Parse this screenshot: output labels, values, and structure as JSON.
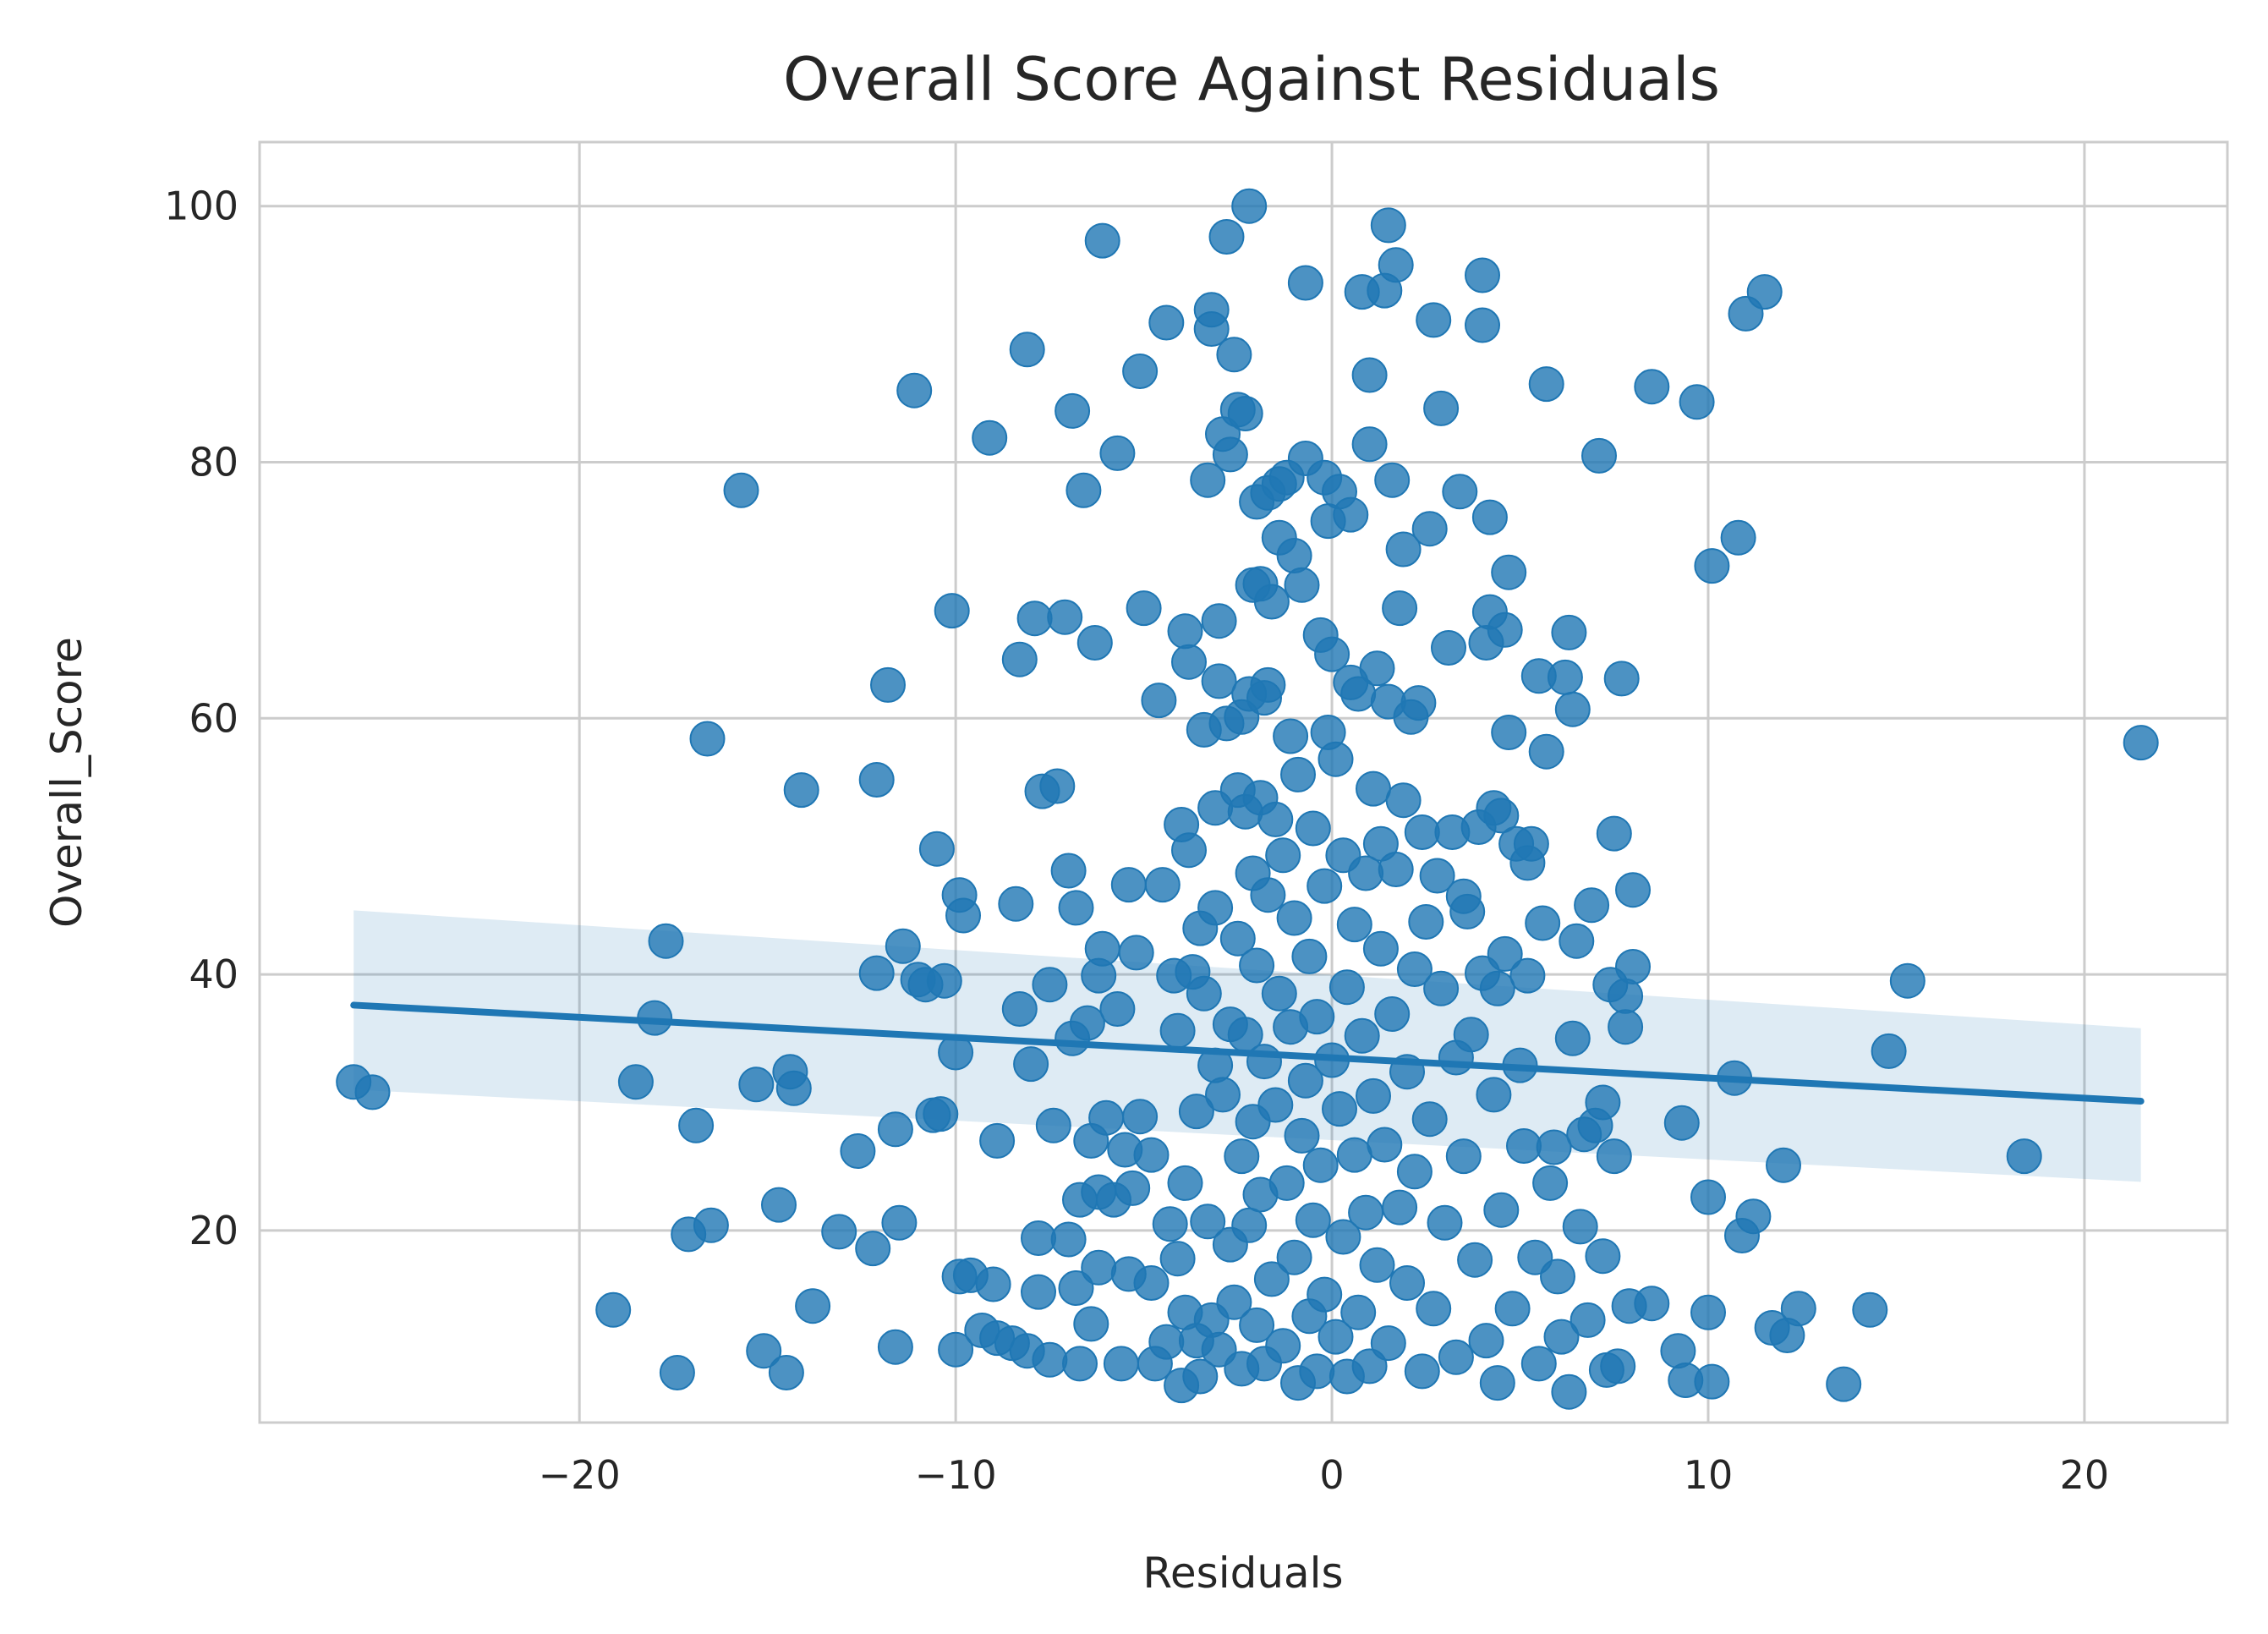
{
  "chart_data": {
    "type": "scatter",
    "title": "Overall Score Against Residuals",
    "xlabel": "Residuals",
    "ylabel": "Overall_Score",
    "xlim": [
      -28.5,
      23.8
    ],
    "ylim": [
      5,
      105
    ],
    "xticks": [
      -20,
      -10,
      0,
      10,
      20
    ],
    "xtick_labels": [
      "−20",
      "−10",
      "0",
      "10",
      "20"
    ],
    "yticks": [
      20,
      40,
      60,
      80,
      100
    ],
    "ytick_labels": [
      "20",
      "40",
      "60",
      "80",
      "100"
    ],
    "grid": true,
    "colors": {
      "point": "#1f77b4",
      "line": "#1f77b4",
      "band": "#1f77b4",
      "grid": "#cccccc"
    },
    "regression": {
      "x": [
        -26.0,
        21.5
      ],
      "y": [
        37.6,
        30.1
      ],
      "ci_upper": [
        45.0,
        35.8
      ],
      "ci_lower": [
        31.0,
        23.8
      ]
    },
    "points": [
      [
        -26.0,
        31.6
      ],
      [
        -25.5,
        30.8
      ],
      [
        -19.1,
        13.8
      ],
      [
        -18.5,
        31.6
      ],
      [
        -18.0,
        36.6
      ],
      [
        -17.7,
        42.6
      ],
      [
        -17.4,
        8.9
      ],
      [
        -16.9,
        28.2
      ],
      [
        -16.6,
        58.4
      ],
      [
        -16.5,
        20.4
      ],
      [
        -17.1,
        19.7
      ],
      [
        -15.7,
        77.8
      ],
      [
        -15.3,
        31.4
      ],
      [
        -15.1,
        10.6
      ],
      [
        -14.7,
        22.0
      ],
      [
        -14.5,
        8.9
      ],
      [
        -14.4,
        32.4
      ],
      [
        -14.3,
        31.1
      ],
      [
        -14.1,
        54.4
      ],
      [
        -13.8,
        14.1
      ],
      [
        -13.1,
        19.9
      ],
      [
        -12.6,
        26.2
      ],
      [
        -12.2,
        18.6
      ],
      [
        -12.1,
        40.1
      ],
      [
        -12.1,
        55.2
      ],
      [
        -11.8,
        62.6
      ],
      [
        -11.6,
        27.9
      ],
      [
        -11.6,
        10.9
      ],
      [
        -11.5,
        20.6
      ],
      [
        -11.4,
        42.2
      ],
      [
        -11.1,
        85.6
      ],
      [
        -11.0,
        39.6
      ],
      [
        -10.8,
        39.2
      ],
      [
        -10.6,
        29.0
      ],
      [
        -10.5,
        49.8
      ],
      [
        -10.4,
        29.1
      ],
      [
        -10.3,
        39.5
      ],
      [
        -10.1,
        68.4
      ],
      [
        -10.0,
        33.9
      ],
      [
        -10.0,
        10.7
      ],
      [
        -9.9,
        46.2
      ],
      [
        -9.9,
        16.4
      ],
      [
        -9.8,
        44.6
      ],
      [
        -9.6,
        16.5
      ],
      [
        -9.3,
        12.2
      ],
      [
        -9.1,
        81.9
      ],
      [
        -9.0,
        15.8
      ],
      [
        -8.9,
        11.6
      ],
      [
        -8.9,
        27.0
      ],
      [
        -8.5,
        11.2
      ],
      [
        -8.4,
        45.5
      ],
      [
        -8.3,
        37.3
      ],
      [
        -8.3,
        64.6
      ],
      [
        -8.1,
        88.8
      ],
      [
        -8.1,
        10.6
      ],
      [
        -8.0,
        33.0
      ],
      [
        -7.9,
        67.8
      ],
      [
        -7.8,
        19.4
      ],
      [
        -7.8,
        15.2
      ],
      [
        -7.7,
        54.3
      ],
      [
        -7.5,
        39.2
      ],
      [
        -7.5,
        9.9
      ],
      [
        -7.4,
        28.2
      ],
      [
        -7.3,
        54.7
      ],
      [
        -7.1,
        67.9
      ],
      [
        -7.0,
        19.3
      ],
      [
        -7.0,
        48.1
      ],
      [
        -6.9,
        35.0
      ],
      [
        -6.9,
        84.0
      ],
      [
        -6.8,
        45.2
      ],
      [
        -6.8,
        15.5
      ],
      [
        -6.7,
        9.6
      ],
      [
        -6.7,
        22.4
      ],
      [
        -6.6,
        77.8
      ],
      [
        -6.5,
        36.2
      ],
      [
        -6.4,
        12.7
      ],
      [
        -6.4,
        27.0
      ],
      [
        -6.3,
        65.9
      ],
      [
        -6.2,
        23.0
      ],
      [
        -6.2,
        39.9
      ],
      [
        -6.2,
        17.1
      ],
      [
        -6.1,
        42.0
      ],
      [
        -6.1,
        97.3
      ],
      [
        -6.0,
        28.8
      ],
      [
        -5.8,
        22.4
      ],
      [
        -5.7,
        80.7
      ],
      [
        -5.7,
        37.3
      ],
      [
        -5.6,
        9.6
      ],
      [
        -5.5,
        26.3
      ],
      [
        -5.4,
        16.6
      ],
      [
        -5.4,
        47.0
      ],
      [
        -5.3,
        23.3
      ],
      [
        -5.2,
        41.7
      ],
      [
        -5.1,
        87.1
      ],
      [
        -5.1,
        28.9
      ],
      [
        -5.0,
        68.6
      ],
      [
        -4.8,
        25.9
      ],
      [
        -4.8,
        15.9
      ],
      [
        -4.7,
        9.6
      ],
      [
        -4.6,
        61.4
      ],
      [
        -4.5,
        47.0
      ],
      [
        -4.4,
        90.9
      ],
      [
        -4.4,
        11.3
      ],
      [
        -4.3,
        20.5
      ],
      [
        -4.2,
        39.9
      ],
      [
        -4.1,
        35.6
      ],
      [
        -4.1,
        17.8
      ],
      [
        -4.0,
        51.7
      ],
      [
        -4.0,
        7.9
      ],
      [
        -3.9,
        13.6
      ],
      [
        -3.9,
        23.7
      ],
      [
        -3.9,
        66.8
      ],
      [
        -3.8,
        49.7
      ],
      [
        -3.8,
        64.4
      ],
      [
        -3.7,
        40.2
      ],
      [
        -3.6,
        29.3
      ],
      [
        -3.6,
        11.4
      ],
      [
        -3.5,
        43.6
      ],
      [
        -3.5,
        8.6
      ],
      [
        -3.4,
        38.5
      ],
      [
        -3.4,
        59.1
      ],
      [
        -3.3,
        78.6
      ],
      [
        -3.3,
        20.7
      ],
      [
        -3.2,
        91.9
      ],
      [
        -3.2,
        13.0
      ],
      [
        -3.2,
        90.4
      ],
      [
        -3.1,
        53.0
      ],
      [
        -3.1,
        32.9
      ],
      [
        -3.1,
        45.2
      ],
      [
        -3.0,
        67.6
      ],
      [
        -3.0,
        62.9
      ],
      [
        -3.0,
        10.7
      ],
      [
        -2.9,
        82.2
      ],
      [
        -2.9,
        30.6
      ],
      [
        -2.8,
        59.6
      ],
      [
        -2.8,
        97.6
      ],
      [
        -2.7,
        80.6
      ],
      [
        -2.7,
        18.9
      ],
      [
        -2.7,
        36.1
      ],
      [
        -2.6,
        88.4
      ],
      [
        -2.6,
        14.4
      ],
      [
        -2.5,
        54.4
      ],
      [
        -2.5,
        84.1
      ],
      [
        -2.5,
        42.8
      ],
      [
        -2.4,
        25.8
      ],
      [
        -2.4,
        60.1
      ],
      [
        -2.4,
        9.2
      ],
      [
        -2.3,
        83.8
      ],
      [
        -2.3,
        52.7
      ],
      [
        -2.3,
        35.3
      ],
      [
        -2.2,
        100.0
      ],
      [
        -2.2,
        61.9
      ],
      [
        -2.2,
        20.4
      ],
      [
        -2.1,
        70.4
      ],
      [
        -2.1,
        47.9
      ],
      [
        -2.1,
        28.5
      ],
      [
        -2.0,
        76.9
      ],
      [
        -2.0,
        12.6
      ],
      [
        -2.0,
        40.7
      ],
      [
        -1.9,
        53.8
      ],
      [
        -1.9,
        70.5
      ],
      [
        -1.9,
        22.8
      ],
      [
        -1.8,
        61.6
      ],
      [
        -1.8,
        33.2
      ],
      [
        -1.8,
        9.6
      ],
      [
        -1.7,
        62.6
      ],
      [
        -1.7,
        77.6
      ],
      [
        -1.7,
        46.2
      ],
      [
        -1.6,
        69.1
      ],
      [
        -1.6,
        16.2
      ],
      [
        -1.5,
        52.1
      ],
      [
        -1.5,
        29.8
      ],
      [
        -1.4,
        78.3
      ],
      [
        -1.4,
        74.1
      ],
      [
        -1.4,
        38.5
      ],
      [
        -1.3,
        11.0
      ],
      [
        -1.3,
        49.3
      ],
      [
        -1.2,
        78.8
      ],
      [
        -1.2,
        23.7
      ],
      [
        -1.1,
        58.6
      ],
      [
        -1.1,
        35.9
      ],
      [
        -1.0,
        72.7
      ],
      [
        -1.0,
        17.9
      ],
      [
        -1.0,
        44.4
      ],
      [
        -0.9,
        55.6
      ],
      [
        -0.9,
        8.1
      ],
      [
        -0.8,
        70.4
      ],
      [
        -0.8,
        27.4
      ],
      [
        -0.7,
        80.3
      ],
      [
        -0.7,
        31.7
      ],
      [
        -0.7,
        94.0
      ],
      [
        -0.6,
        13.3
      ],
      [
        -0.6,
        41.4
      ],
      [
        -0.5,
        51.4
      ],
      [
        -0.5,
        20.8
      ],
      [
        -0.4,
        36.7
      ],
      [
        -0.4,
        9.0
      ],
      [
        -0.3,
        66.5
      ],
      [
        -0.3,
        25.1
      ],
      [
        -0.2,
        78.8
      ],
      [
        -0.2,
        46.9
      ],
      [
        -0.2,
        15.0
      ],
      [
        -0.1,
        75.4
      ],
      [
        -0.1,
        58.9
      ],
      [
        0.0,
        33.3
      ],
      [
        0.0,
        65.0
      ],
      [
        0.1,
        11.7
      ],
      [
        0.1,
        56.8
      ],
      [
        0.2,
        29.5
      ],
      [
        0.2,
        77.7
      ],
      [
        0.3,
        49.3
      ],
      [
        0.3,
        19.5
      ],
      [
        0.4,
        39.0
      ],
      [
        0.4,
        8.6
      ],
      [
        0.5,
        62.8
      ],
      [
        0.5,
        75.9
      ],
      [
        0.6,
        43.9
      ],
      [
        0.6,
        25.9
      ],
      [
        0.7,
        61.9
      ],
      [
        0.7,
        13.6
      ],
      [
        0.8,
        93.3
      ],
      [
        0.8,
        35.2
      ],
      [
        0.9,
        47.9
      ],
      [
        0.9,
        21.4
      ],
      [
        1.0,
        86.8
      ],
      [
        1.0,
        81.4
      ],
      [
        1.0,
        9.4
      ],
      [
        1.1,
        54.5
      ],
      [
        1.1,
        30.5
      ],
      [
        1.2,
        63.9
      ],
      [
        1.2,
        17.3
      ],
      [
        1.3,
        42.0
      ],
      [
        1.3,
        50.2
      ],
      [
        1.4,
        93.4
      ],
      [
        1.4,
        26.7
      ],
      [
        1.5,
        98.5
      ],
      [
        1.5,
        61.3
      ],
      [
        1.5,
        11.2
      ],
      [
        1.6,
        78.6
      ],
      [
        1.6,
        36.9
      ],
      [
        1.7,
        95.4
      ],
      [
        1.7,
        48.2
      ],
      [
        1.8,
        68.6
      ],
      [
        1.8,
        21.8
      ],
      [
        1.9,
        73.2
      ],
      [
        1.9,
        53.6
      ],
      [
        2.0,
        15.9
      ],
      [
        2.0,
        32.4
      ],
      [
        2.1,
        60.1
      ],
      [
        2.2,
        40.4
      ],
      [
        2.2,
        24.6
      ],
      [
        2.3,
        61.2
      ],
      [
        2.4,
        9.0
      ],
      [
        2.4,
        51.1
      ],
      [
        2.5,
        44.1
      ],
      [
        2.6,
        74.8
      ],
      [
        2.6,
        28.7
      ],
      [
        2.7,
        91.1
      ],
      [
        2.7,
        13.9
      ],
      [
        2.8,
        47.7
      ],
      [
        2.9,
        84.2
      ],
      [
        2.9,
        38.9
      ],
      [
        3.0,
        20.6
      ],
      [
        3.1,
        65.5
      ],
      [
        3.2,
        51.1
      ],
      [
        3.3,
        33.5
      ],
      [
        3.3,
        10.1
      ],
      [
        3.4,
        77.7
      ],
      [
        3.5,
        46.1
      ],
      [
        3.5,
        25.8
      ],
      [
        3.6,
        44.9
      ],
      [
        3.7,
        35.3
      ],
      [
        3.8,
        17.7
      ],
      [
        3.9,
        51.5
      ],
      [
        4.0,
        94.6
      ],
      [
        4.0,
        90.7
      ],
      [
        4.0,
        40.1
      ],
      [
        4.1,
        11.4
      ],
      [
        4.1,
        65.9
      ],
      [
        4.2,
        68.3
      ],
      [
        4.2,
        75.7
      ],
      [
        4.3,
        53.0
      ],
      [
        4.3,
        30.6
      ],
      [
        4.4,
        8.1
      ],
      [
        4.4,
        38.9
      ],
      [
        4.5,
        52.4
      ],
      [
        4.5,
        21.6
      ],
      [
        4.6,
        66.9
      ],
      [
        4.6,
        41.6
      ],
      [
        4.7,
        58.9
      ],
      [
        4.7,
        71.4
      ],
      [
        4.8,
        13.9
      ],
      [
        4.9,
        50.2
      ],
      [
        5.0,
        32.9
      ],
      [
        5.1,
        26.6
      ],
      [
        5.2,
        39.9
      ],
      [
        5.2,
        48.7
      ],
      [
        5.3,
        50.2
      ],
      [
        5.4,
        17.9
      ],
      [
        5.5,
        9.6
      ],
      [
        5.5,
        63.3
      ],
      [
        5.6,
        44.0
      ],
      [
        5.7,
        57.4
      ],
      [
        5.7,
        86.1
      ],
      [
        5.8,
        23.7
      ],
      [
        5.9,
        26.5
      ],
      [
        6.0,
        16.4
      ],
      [
        6.1,
        11.7
      ],
      [
        6.2,
        63.2
      ],
      [
        6.3,
        7.4
      ],
      [
        6.3,
        66.7
      ],
      [
        6.4,
        60.7
      ],
      [
        6.4,
        35.0
      ],
      [
        6.5,
        42.6
      ],
      [
        6.6,
        20.3
      ],
      [
        6.7,
        27.5
      ],
      [
        6.8,
        13.0
      ],
      [
        6.9,
        45.4
      ],
      [
        7.0,
        28.2
      ],
      [
        7.1,
        80.5
      ],
      [
        7.2,
        18.0
      ],
      [
        7.2,
        30.0
      ],
      [
        7.3,
        9.1
      ],
      [
        7.4,
        39.2
      ],
      [
        7.5,
        25.8
      ],
      [
        7.5,
        51.0
      ],
      [
        7.6,
        9.4
      ],
      [
        7.7,
        63.1
      ],
      [
        7.8,
        38.3
      ],
      [
        7.8,
        35.9
      ],
      [
        7.9,
        14.1
      ],
      [
        8.0,
        40.6
      ],
      [
        8.0,
        46.6
      ],
      [
        8.5,
        14.3
      ],
      [
        8.5,
        85.9
      ],
      [
        9.2,
        10.6
      ],
      [
        9.3,
        28.4
      ],
      [
        9.4,
        8.3
      ],
      [
        9.7,
        84.7
      ],
      [
        10.0,
        13.6
      ],
      [
        10.0,
        22.6
      ],
      [
        10.1,
        8.2
      ],
      [
        10.1,
        71.9
      ],
      [
        10.7,
        31.9
      ],
      [
        10.8,
        74.1
      ],
      [
        10.9,
        19.6
      ],
      [
        11.0,
        91.6
      ],
      [
        11.2,
        21.1
      ],
      [
        11.5,
        93.3
      ],
      [
        11.7,
        12.4
      ],
      [
        12.0,
        25.1
      ],
      [
        12.1,
        11.8
      ],
      [
        12.4,
        13.9
      ],
      [
        13.6,
        8.0
      ],
      [
        14.3,
        13.8
      ],
      [
        14.8,
        34.0
      ],
      [
        15.3,
        39.5
      ],
      [
        18.4,
        25.8
      ],
      [
        21.5,
        58.1
      ]
    ]
  }
}
